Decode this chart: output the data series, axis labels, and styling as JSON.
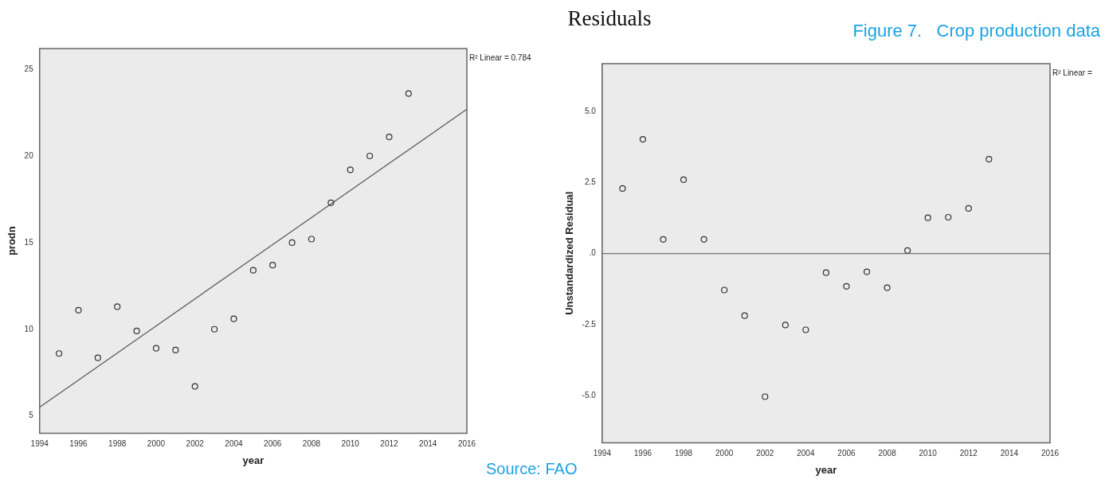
{
  "chart_data": [
    {
      "type": "scatter",
      "xlabel": "year",
      "ylabel": "prodn",
      "xlim": [
        1994,
        2016
      ],
      "ylim": [
        4,
        26.2
      ],
      "xticks": [
        1994,
        1996,
        1998,
        2000,
        2002,
        2004,
        2006,
        2008,
        2010,
        2012,
        2014,
        2016
      ],
      "yticks": [
        5,
        10,
        15,
        20,
        25
      ],
      "grid": false,
      "legend": false,
      "marker": "circle",
      "series": [
        {
          "color": "#333333",
          "x": [
            1995,
            1996,
            1997,
            1998,
            1999,
            2000,
            2001,
            2002,
            2003,
            2004,
            2005,
            2006,
            2007,
            2008,
            2009,
            2010,
            2011,
            2012,
            2013
          ],
          "values": [
            8.6,
            11.1,
            8.35,
            11.3,
            9.9,
            8.9,
            8.8,
            6.7,
            10.0,
            10.6,
            13.4,
            13.7,
            15.0,
            15.2,
            17.3,
            19.2,
            20.0,
            21.1,
            23.6
          ]
        },
        {
          "type": "line",
          "color": "#555555",
          "marker": "none",
          "x": [
            1994,
            2016
          ],
          "values": [
            5.5,
            22.7
          ]
        }
      ],
      "annotations": [
        "R² Linear = 0.784"
      ]
    },
    {
      "type": "scatter",
      "title": "Residuals",
      "xlabel": "year",
      "ylabel": "Unstandardized Residual",
      "xlim": [
        1994,
        2016
      ],
      "ylim": [
        -6.65,
        6.68
      ],
      "xticks": [
        1994,
        1996,
        1998,
        2000,
        2002,
        2004,
        2006,
        2008,
        2010,
        2012,
        2014,
        2016
      ],
      "yticks": [
        {
          "value": 5,
          "label": "5.0"
        },
        {
          "value": 2.5,
          "label": "2.5"
        },
        {
          "value": 0,
          "label": ".0"
        },
        {
          "value": -2.5,
          "label": "-2.5"
        },
        {
          "value": -5,
          "label": "-5.0"
        }
      ],
      "grid": false,
      "legend": false,
      "marker": "circle",
      "series": [
        {
          "color": "#333333",
          "x": [
            1995,
            1996,
            1997,
            1998,
            1999,
            2000,
            2001,
            2002,
            2003,
            2004,
            2005,
            2006,
            2007,
            2008,
            2009,
            2010,
            2011,
            2012,
            2013
          ],
          "values": [
            2.29,
            4.02,
            0.5,
            2.6,
            0.5,
            -1.28,
            -2.18,
            -5.03,
            -2.51,
            -2.68,
            -0.67,
            -1.15,
            -0.64,
            -1.2,
            0.11,
            1.26,
            1.28,
            1.59,
            3.32
          ]
        }
      ],
      "ref_lines": [
        {
          "axis": "y",
          "value": 0,
          "color": "#555555"
        }
      ],
      "annotations": [
        "R² Linear =",
        "Figure 7.   Crop production data",
        "Source: FAO"
      ]
    }
  ]
}
